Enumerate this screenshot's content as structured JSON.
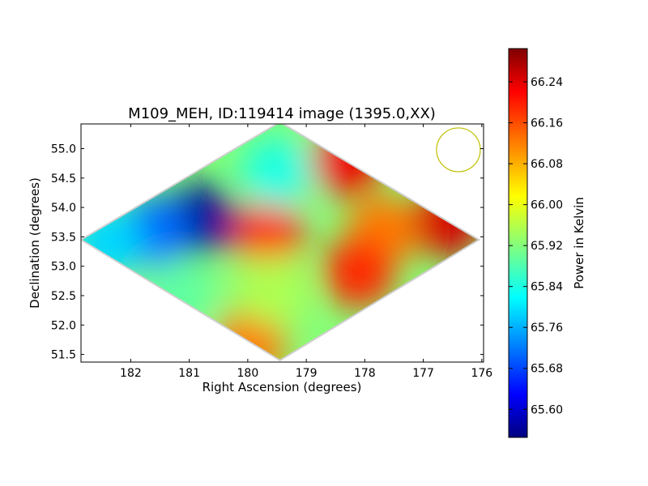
{
  "chart_data": {
    "type": "heatmap",
    "title": "M109_MEH, ID:119414 image (1395.0,XX)",
    "xlabel": "Right Ascension (degrees)",
    "ylabel": "Declination (degrees)",
    "colorbar_label": "Power in Kelvin",
    "colormap": "jet",
    "x_axis_inverted": true,
    "xlim": [
      182.85,
      175.97
    ],
    "ylim": [
      51.37,
      55.42
    ],
    "x_ticks": [
      182,
      181,
      180,
      179,
      178,
      177,
      176
    ],
    "y_ticks": [
      51.5,
      52.0,
      52.5,
      53.0,
      53.5,
      54.0,
      54.5,
      55.0
    ],
    "y_tick_labels": [
      "51.5",
      "52.0",
      "52.5",
      "53.0",
      "53.5",
      "54.0",
      "54.5",
      "55.0"
    ],
    "colorbar_range": [
      65.545,
      66.305
    ],
    "colorbar_ticks": [
      65.6,
      65.68,
      65.76,
      65.84,
      65.92,
      66.0,
      66.08,
      66.16,
      66.24
    ],
    "colorbar_tick_labels": [
      "65.60",
      "65.68",
      "65.76",
      "65.84",
      "65.92",
      "66.00",
      "66.08",
      "66.16",
      "66.24"
    ],
    "footprint": {
      "shape": "diamond",
      "vertices": [
        [
          182.85,
          53.45
        ],
        [
          179.45,
          55.45
        ],
        [
          176.05,
          53.45
        ],
        [
          179.45,
          51.4
        ]
      ]
    },
    "beam_circle": {
      "ra": 176.4,
      "dec": 54.98,
      "color": "#bfbf00"
    },
    "features": [
      {
        "name": "low",
        "ra": 180.8,
        "dec": 53.8,
        "value": 65.56
      },
      {
        "name": "low",
        "ra": 181.6,
        "dec": 53.6,
        "value": 65.72
      },
      {
        "name": "high",
        "ra": 178.3,
        "dec": 54.8,
        "value": 66.22
      },
      {
        "name": "high",
        "ra": 176.6,
        "dec": 53.75,
        "value": 66.24
      },
      {
        "name": "high",
        "ra": 177.7,
        "dec": 53.6,
        "value": 66.12
      },
      {
        "name": "high",
        "ra": 178.1,
        "dec": 52.9,
        "value": 66.18
      },
      {
        "name": "high",
        "ra": 179.65,
        "dec": 53.55,
        "value": 66.18
      },
      {
        "name": "high",
        "ra": 179.95,
        "dec": 51.7,
        "value": 66.12
      },
      {
        "name": "mid",
        "ra": 179.5,
        "dec": 54.6,
        "value": 65.85
      },
      {
        "name": "mid",
        "ra": 179.6,
        "dec": 52.6,
        "value": 65.96
      },
      {
        "name": "mid",
        "ra": 182.4,
        "dec": 53.4,
        "value": 65.8
      },
      {
        "name": "mid",
        "ra": 181.2,
        "dec": 52.5,
        "value": 65.9
      }
    ]
  }
}
